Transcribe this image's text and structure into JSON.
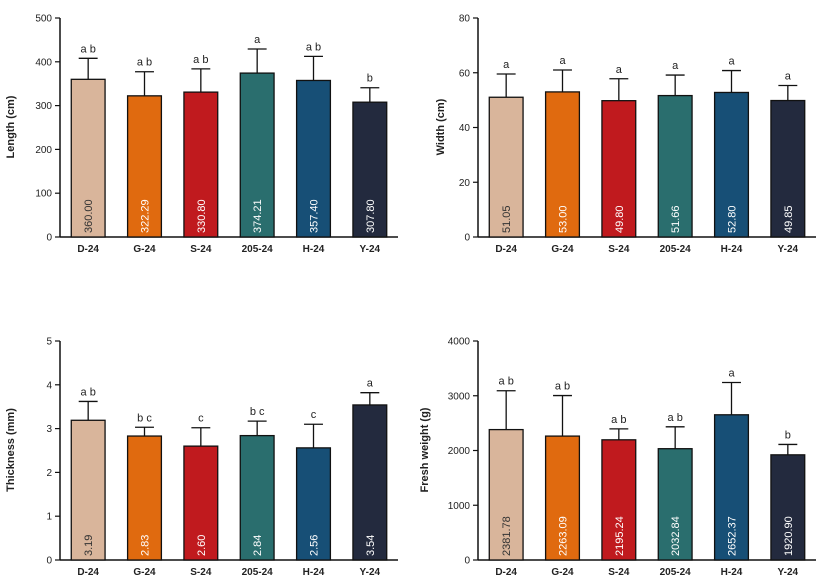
{
  "colors": [
    "#d9b59b",
    "#e06a0f",
    "#c01a1e",
    "#2a6e6e",
    "#174f76",
    "#232a3e"
  ],
  "value_label_colors": [
    "#333333",
    "#ffffff",
    "#ffffff",
    "#ffffff",
    "#ffffff",
    "#ffffff"
  ],
  "chart_data": [
    {
      "type": "bar",
      "categories": [
        "D-24",
        "G-24",
        "S-24",
        "205-24",
        "H-24",
        "Y-24"
      ],
      "values": [
        360.0,
        322.29,
        330.8,
        374.21,
        357.4,
        307.8
      ],
      "value_labels": [
        "360.00",
        "322.29",
        "330.80",
        "374.21",
        "357.40",
        "307.80"
      ],
      "errors": [
        48,
        55,
        53,
        55,
        55,
        33
      ],
      "significance": [
        "a b",
        "a b",
        "a b",
        "a",
        "a b",
        "b"
      ],
      "ylabel": "Length (cm)",
      "ylim": [
        0,
        500
      ],
      "yticks": [
        "0",
        "100",
        "200",
        "300",
        "400",
        "500"
      ],
      "grid": false
    },
    {
      "type": "bar",
      "categories": [
        "D-24",
        "G-24",
        "S-24",
        "205-24",
        "H-24",
        "Y-24"
      ],
      "values": [
        51.05,
        53.0,
        49.8,
        51.66,
        52.8,
        49.85
      ],
      "value_labels": [
        "51.05",
        "53.00",
        "49.80",
        "51.66",
        "52.80",
        "49.85"
      ],
      "errors": [
        8.5,
        8,
        8,
        7.5,
        8,
        5.5
      ],
      "significance": [
        "a",
        "a",
        "a",
        "a",
        "a",
        "a"
      ],
      "ylabel": "Width (cm)",
      "ylim": [
        0,
        80
      ],
      "yticks": [
        "0",
        "20",
        "40",
        "60",
        "80"
      ],
      "grid": false
    },
    {
      "type": "bar",
      "categories": [
        "D-24",
        "G-24",
        "S-24",
        "205-24",
        "H-24",
        "Y-24"
      ],
      "values": [
        3.19,
        2.83,
        2.6,
        2.84,
        2.56,
        3.54
      ],
      "value_labels": [
        "3.19",
        "2.83",
        "2.60",
        "2.84",
        "2.56",
        "3.54"
      ],
      "errors": [
        0.43,
        0.2,
        0.42,
        0.33,
        0.54,
        0.28
      ],
      "significance": [
        "a b",
        "b c",
        "c",
        "b c",
        "c",
        "a"
      ],
      "ylabel": "Thickness (mm)",
      "ylim": [
        0,
        5
      ],
      "yticks": [
        "0",
        "1",
        "2",
        "3",
        "4",
        "5"
      ],
      "grid": false
    },
    {
      "type": "bar",
      "categories": [
        "D-24",
        "G-24",
        "S-24",
        "205-24",
        "H-24",
        "Y-24"
      ],
      "values": [
        2381.78,
        2263.09,
        2195.24,
        2032.84,
        2652.37,
        1920.9
      ],
      "value_labels": [
        "2381.78",
        "2263.09",
        "2195.24",
        "2032.84",
        "2652.37",
        "1920.90"
      ],
      "errors": [
        710,
        740,
        200,
        400,
        590,
        190
      ],
      "significance": [
        "a b",
        "a b",
        "a b",
        "a b",
        "a",
        "b"
      ],
      "ylabel": "Fresh weight (g)",
      "ylim": [
        0,
        4000
      ],
      "yticks": [
        "0",
        "1000",
        "2000",
        "3000",
        "4000"
      ],
      "grid": false
    }
  ]
}
